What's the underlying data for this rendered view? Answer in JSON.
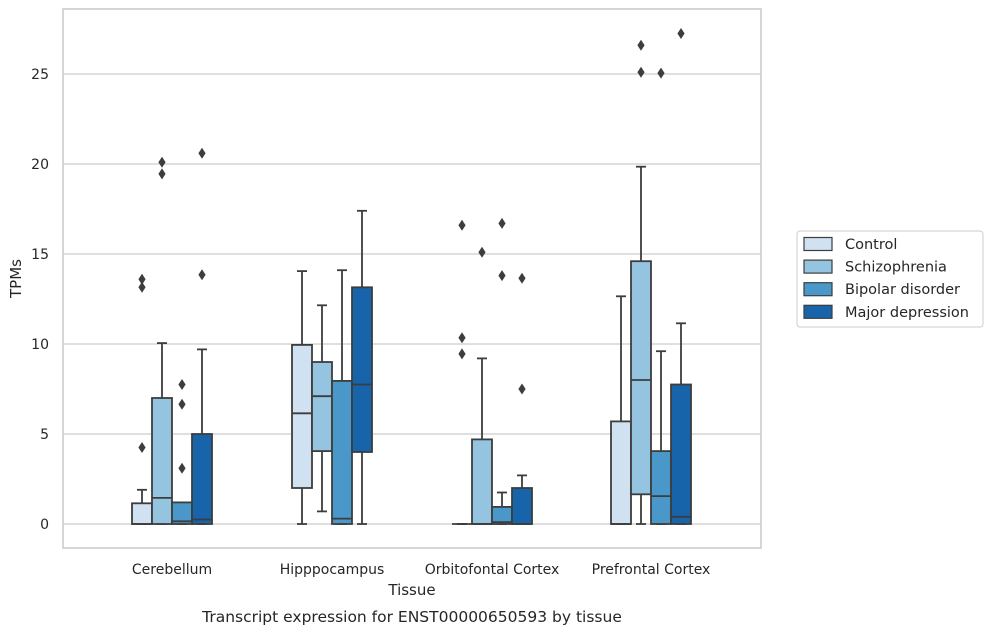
{
  "caption": "Transcript expression for ENST00000650593 by tissue",
  "chart_data": {
    "type": "box",
    "xlabel": "Tissue",
    "ylabel": "TPMs",
    "ylim": [
      -1.3,
      28.7
    ],
    "yticks": [
      0,
      5,
      10,
      15,
      20,
      25
    ],
    "grid": "horizontal",
    "legend_position": "right",
    "categories": [
      "Cerebellum",
      "Hipppocampus",
      "Orbitofontal Cortex",
      "Prefrontal Cortex"
    ],
    "series": [
      {
        "name": "Control",
        "color": "#d0e1f2",
        "boxes": [
          {
            "whislo": 0,
            "q1": 0,
            "med": 0,
            "q3": 1.15,
            "whishi": 1.9,
            "fliers": [
              4.25,
              13.15,
              13.6
            ]
          },
          {
            "whislo": 0,
            "q1": 2.0,
            "med": 6.15,
            "q3": 9.95,
            "whishi": 14.05,
            "fliers": []
          },
          {
            "whislo": 0,
            "q1": 0,
            "med": 0,
            "q3": 0,
            "whishi": 0,
            "fliers": [
              9.45,
              10.35,
              16.6
            ]
          },
          {
            "whislo": 0,
            "q1": 0,
            "med": 0,
            "q3": 5.7,
            "whishi": 12.65,
            "fliers": []
          }
        ]
      },
      {
        "name": "Schizophrenia",
        "color": "#94c4df",
        "boxes": [
          {
            "whislo": 0,
            "q1": 0,
            "med": 1.45,
            "q3": 7.0,
            "whishi": 10.05,
            "fliers": [
              19.45,
              20.1
            ]
          },
          {
            "whislo": 0.7,
            "q1": 4.05,
            "med": 7.1,
            "q3": 9.0,
            "whishi": 12.15,
            "fliers": []
          },
          {
            "whislo": 0,
            "q1": 0,
            "med": 0,
            "q3": 4.7,
            "whishi": 9.2,
            "fliers": [
              15.1
            ]
          },
          {
            "whislo": 0,
            "q1": 1.65,
            "med": 8.0,
            "q3": 14.6,
            "whishi": 19.85,
            "fliers": [
              25.1,
              26.6
            ]
          }
        ]
      },
      {
        "name": "Bipolar disorder",
        "color": "#4a98c9",
        "boxes": [
          {
            "whislo": 0,
            "q1": 0,
            "med": 0.15,
            "q3": 1.2,
            "whishi": 1.2,
            "fliers": [
              3.1,
              6.65,
              7.75
            ]
          },
          {
            "whislo": 0,
            "q1": 0,
            "med": 0.3,
            "q3": 7.95,
            "whishi": 14.1,
            "fliers": []
          },
          {
            "whislo": 0,
            "q1": 0,
            "med": 0.1,
            "q3": 0.95,
            "whishi": 1.75,
            "fliers": [
              13.8,
              16.7
            ]
          },
          {
            "whislo": 0,
            "q1": 0,
            "med": 1.55,
            "q3": 4.05,
            "whishi": 9.6,
            "fliers": [
              25.05
            ]
          }
        ]
      },
      {
        "name": "Major depression",
        "color": "#1764ab",
        "boxes": [
          {
            "whislo": 0,
            "q1": 0,
            "med": 0.25,
            "q3": 5.0,
            "whishi": 9.7,
            "fliers": [
              13.85,
              20.6
            ]
          },
          {
            "whislo": 0,
            "q1": 4.0,
            "med": 7.75,
            "q3": 13.15,
            "whishi": 17.4,
            "fliers": []
          },
          {
            "whislo": 0,
            "q1": 0,
            "med": 0,
            "q3": 2.0,
            "whishi": 2.7,
            "fliers": [
              7.5,
              13.65
            ]
          },
          {
            "whislo": 0,
            "q1": 0,
            "med": 0.4,
            "q3": 7.75,
            "whishi": 11.15,
            "fliers": [
              27.25
            ]
          }
        ]
      }
    ]
  }
}
